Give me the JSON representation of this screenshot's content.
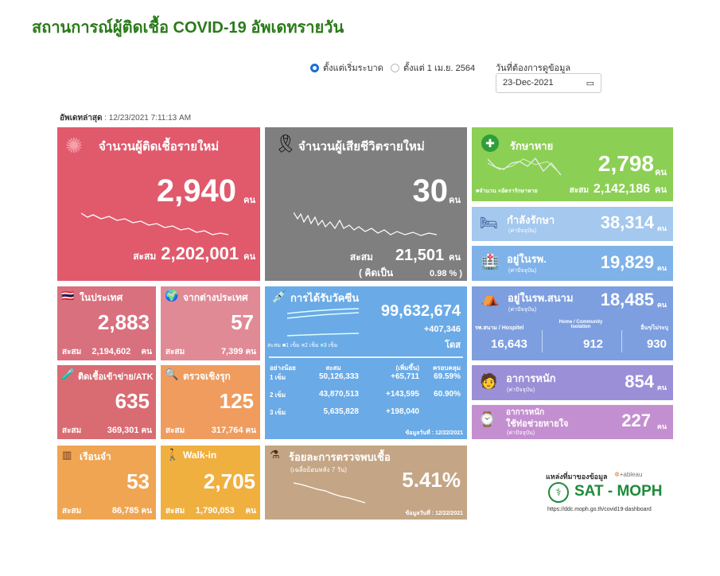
{
  "title": "สถานการณ์ผู้ติดเชื้อ COVID-19 อัพเดทรายวัน",
  "filters": {
    "radio1": "ตั้งแต่เริ่มระบาด",
    "radio2": "ตั้งแต่ 1 เม.ย. 2564",
    "radio_selected": "ตั้งแต่เริ่มระบาด",
    "date_label": "วันที่ต้องการดูข้อมูล",
    "date_value": "23-Dec-2021"
  },
  "updated": {
    "label": "อัพเดทล่าสุด",
    "value": ": 12/23/2021 7:11:13 AM"
  },
  "unit": "คน",
  "cum_label": "สะสม",
  "new_cases": {
    "title": "จำนวนผู้ติดเชื้อรายใหม่",
    "value": "2,940",
    "cum": "2,202,001",
    "color": "#e05a6c"
  },
  "deaths": {
    "title": "จำนวนผู้เสียชีวิตรายใหม่",
    "value": "30",
    "cum": "21,501",
    "pct_label": "( คิดเป็น",
    "pct": "0.98 % )",
    "color": "#7f7f7f"
  },
  "domestic": {
    "title": "ในประเทศ",
    "value": "2,883",
    "cum": "2,194,602"
  },
  "abroad": {
    "title": "จากต่างประเทศ",
    "value": "57",
    "cum": "7,399"
  },
  "atk": {
    "title": "ติดเชื้อเข้าข่าย/ATK",
    "value": "635",
    "cum": "369,301"
  },
  "proactive": {
    "title": "ตรวจเชิงรุก",
    "value": "125",
    "cum": "317,764"
  },
  "prison": {
    "title": "เรือนจำ",
    "value": "53",
    "cum": "86,785"
  },
  "walkin": {
    "title": "Walk-in",
    "value": "2,705",
    "cum": "1,790,053"
  },
  "vaccine": {
    "title": "การได้รับวัคซีน",
    "total": "99,632,674",
    "added": "+407,346",
    "dose_unit": "โดส",
    "legend": [
      "สะสม",
      "1 เข็ม",
      "2 เข็ม",
      "3 เข็ม"
    ],
    "headers": [
      "อย่างน้อย",
      "สะสม",
      "(เพิ่มขึ้น)",
      "ครอบคลุม"
    ],
    "rows": [
      [
        "1 เข็ม",
        "50,126,333",
        "+65,711",
        "69.59%"
      ],
      [
        "2 เข็ม",
        "43,870,513",
        "+143,595",
        "60.90%"
      ],
      [
        "3 เข็ม",
        "5,635,828",
        "+198,040",
        ""
      ]
    ],
    "date": "ข้อมูลวันที่ : 12/22/2021"
  },
  "positivity": {
    "title": "ร้อยละการตรวจพบเชื้อ",
    "subtitle": "(เฉลี่ยย้อนหลัง 7 วัน)",
    "value": "5.41%",
    "date": "ข้อมูลวันที่ : 12/22/2021"
  },
  "recovered": {
    "title": "รักษาหาย",
    "value": "2,798",
    "cum": "2,142,186",
    "legend": [
      "จำนวน",
      "อัตรารักษาหาย"
    ]
  },
  "treating": {
    "title": "กำลังรักษา",
    "sub": "(ค่าปัจจุบัน)",
    "value": "38,314"
  },
  "hospital": {
    "title": "อยู่ในรพ.",
    "sub": "(ค่าปัจจุบัน)",
    "value": "19,829"
  },
  "field": {
    "title": "อยู่ในรพ.สนาม",
    "sub": "(ค่าปัจจุบัน)",
    "value": "18,485",
    "cols": [
      {
        "label": "รพ.สนาม / Hospitel",
        "value": "16,643"
      },
      {
        "label": "Home / Community Isolation",
        "value": "912"
      },
      {
        "label": "อื่นๆ/ไม่ระบุ",
        "value": "930"
      }
    ]
  },
  "severe": {
    "title": "อาการหนัก",
    "sub": "(ค่าปัจจุบัน)",
    "value": "854"
  },
  "ventilator": {
    "title": "อาการหนัก",
    "title2": "ใช้ท่อช่วยหายใจ",
    "sub": "(ค่าปัจจุบัน)",
    "value": "227"
  },
  "source": {
    "label": "แหล่งที่มาของข้อมูล",
    "tableau": "+ableau",
    "org": "SAT - MOPH",
    "url": "https://ddc.moph.go.th/covid19-dashboard"
  }
}
